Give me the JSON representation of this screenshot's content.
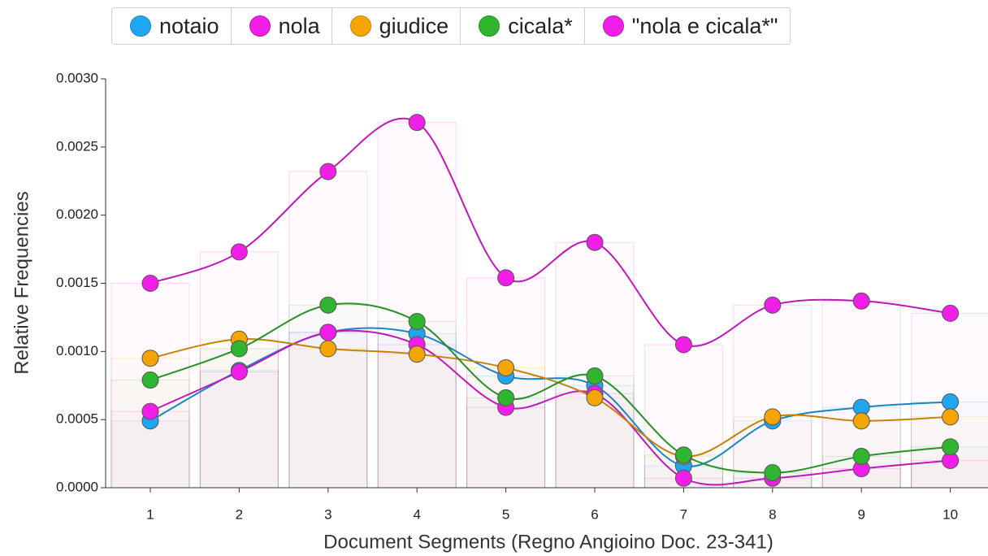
{
  "chart_data": {
    "type": "line",
    "x_label": "Document Segments (Regno Angioino Doc. 23-341)",
    "y_label": "Relative Frequencies",
    "categories": [
      "1",
      "2",
      "3",
      "4",
      "5",
      "6",
      "7",
      "8",
      "9",
      "10"
    ],
    "ylim": [
      0,
      0.003
    ],
    "yticks": [
      {
        "value": 0,
        "label": "0.0000"
      },
      {
        "value": 0.0005,
        "label": "0.0005"
      },
      {
        "value": 0.001,
        "label": "0.0010"
      },
      {
        "value": 0.0015,
        "label": "0.0015"
      },
      {
        "value": 0.002,
        "label": "0.0020"
      },
      {
        "value": 0.0025,
        "label": "0.0025"
      },
      {
        "value": 0.003,
        "label": "0.0030"
      }
    ],
    "series": [
      {
        "name": "notaio",
        "color": "#1ea7f0",
        "values": [
          0.00049,
          0.00086,
          0.00114,
          0.00113,
          0.00082,
          0.00075,
          0.00016,
          0.00049,
          0.00059,
          0.00063
        ]
      },
      {
        "name": "nola",
        "color": "#f01ee6",
        "values": [
          0.00056,
          0.00085,
          0.00114,
          0.00105,
          0.00059,
          0.00069,
          7e-05,
          7e-05,
          0.00014,
          0.0002
        ]
      },
      {
        "name": "giudice",
        "color": "#f5a500",
        "values": [
          0.00095,
          0.00109,
          0.00102,
          0.00098,
          0.00088,
          0.00066,
          0.00023,
          0.00052,
          0.00049,
          0.00052
        ]
      },
      {
        "name": "cicala*",
        "color": "#2fb52f",
        "values": [
          0.00079,
          0.00102,
          0.00134,
          0.00122,
          0.00066,
          0.00082,
          0.00024,
          0.00011,
          0.00023,
          0.0003
        ]
      },
      {
        "name": "\"nola e cicala*\"",
        "color": "#f01ee6",
        "values": [
          0.0015,
          0.00173,
          0.00232,
          0.00268,
          0.00154,
          0.0018,
          0.00105,
          0.00134,
          0.00137,
          0.00128
        ]
      }
    ]
  }
}
